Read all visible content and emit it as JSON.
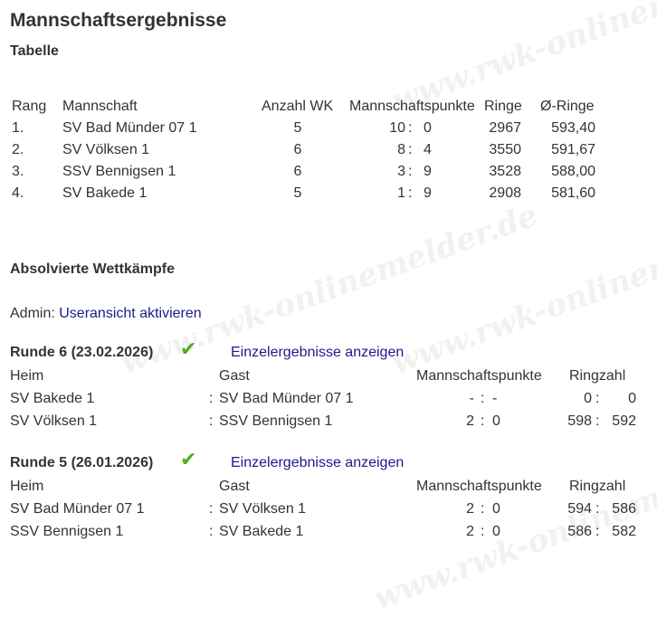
{
  "title": "Mannschaftsergebnisse",
  "table_title": "Tabelle",
  "table": {
    "headers": {
      "rank": "Rang",
      "team": "Mannschaft",
      "count": "Anzahl WK",
      "points": "Mannschaftspunkte",
      "rings": "Ringe",
      "avg": "Ø-Ringe"
    },
    "rows": [
      {
        "rank": "1.",
        "team": "SV Bad Münder 07 1",
        "count": "5",
        "pf": "10",
        "pa": "0",
        "rings": "2967",
        "avg": "593,40"
      },
      {
        "rank": "2.",
        "team": "SV Völksen 1",
        "count": "6",
        "pf": "8",
        "pa": "4",
        "rings": "3550",
        "avg": "591,67"
      },
      {
        "rank": "3.",
        "team": "SSV Bennigsen 1",
        "count": "6",
        "pf": "3",
        "pa": "9",
        "rings": "3528",
        "avg": "588,00"
      },
      {
        "rank": "4.",
        "team": "SV Bakede 1",
        "count": "5",
        "pf": "1",
        "pa": "9",
        "rings": "2908",
        "avg": "581,60"
      }
    ]
  },
  "completed_title": "Absolvierte Wettkämpfe",
  "admin": {
    "label": "Admin:",
    "link": "Useransicht aktivieren"
  },
  "colon": ":",
  "rounds": [
    {
      "title": "Runde 6  (23.02.2026)",
      "link": "Einzelergebnisse anzeigen",
      "headers": {
        "home": "Heim",
        "guest": "Gast",
        "points": "Mannschaftspunkte",
        "rings": "Ringzahl"
      },
      "matches": [
        {
          "home": "SV Bakede 1",
          "guest": "SV Bad Münder 07 1",
          "ph": "-",
          "pg": "-",
          "rh": "0",
          "rg": "0"
        },
        {
          "home": "SV Völksen 1",
          "guest": "SSV Bennigsen 1",
          "ph": "2",
          "pg": "0",
          "rh": "598",
          "rg": "592"
        }
      ]
    },
    {
      "title": "Runde 5  (26.01.2026)",
      "link": "Einzelergebnisse anzeigen",
      "headers": {
        "home": "Heim",
        "guest": "Gast",
        "points": "Mannschaftspunkte",
        "rings": "Ringzahl"
      },
      "matches": [
        {
          "home": "SV Bad Münder 07 1",
          "guest": "SV Völksen 1",
          "ph": "2",
          "pg": "0",
          "rh": "594",
          "rg": "586"
        },
        {
          "home": "SSV Bennigsen 1",
          "guest": "SV Bakede 1",
          "ph": "2",
          "pg": "0",
          "rh": "586",
          "rg": "582"
        }
      ]
    }
  ],
  "watermark": "www.rwk-onlinemelder.de",
  "check_color": "#4caf1e",
  "link_color": "#1a1a8c"
}
